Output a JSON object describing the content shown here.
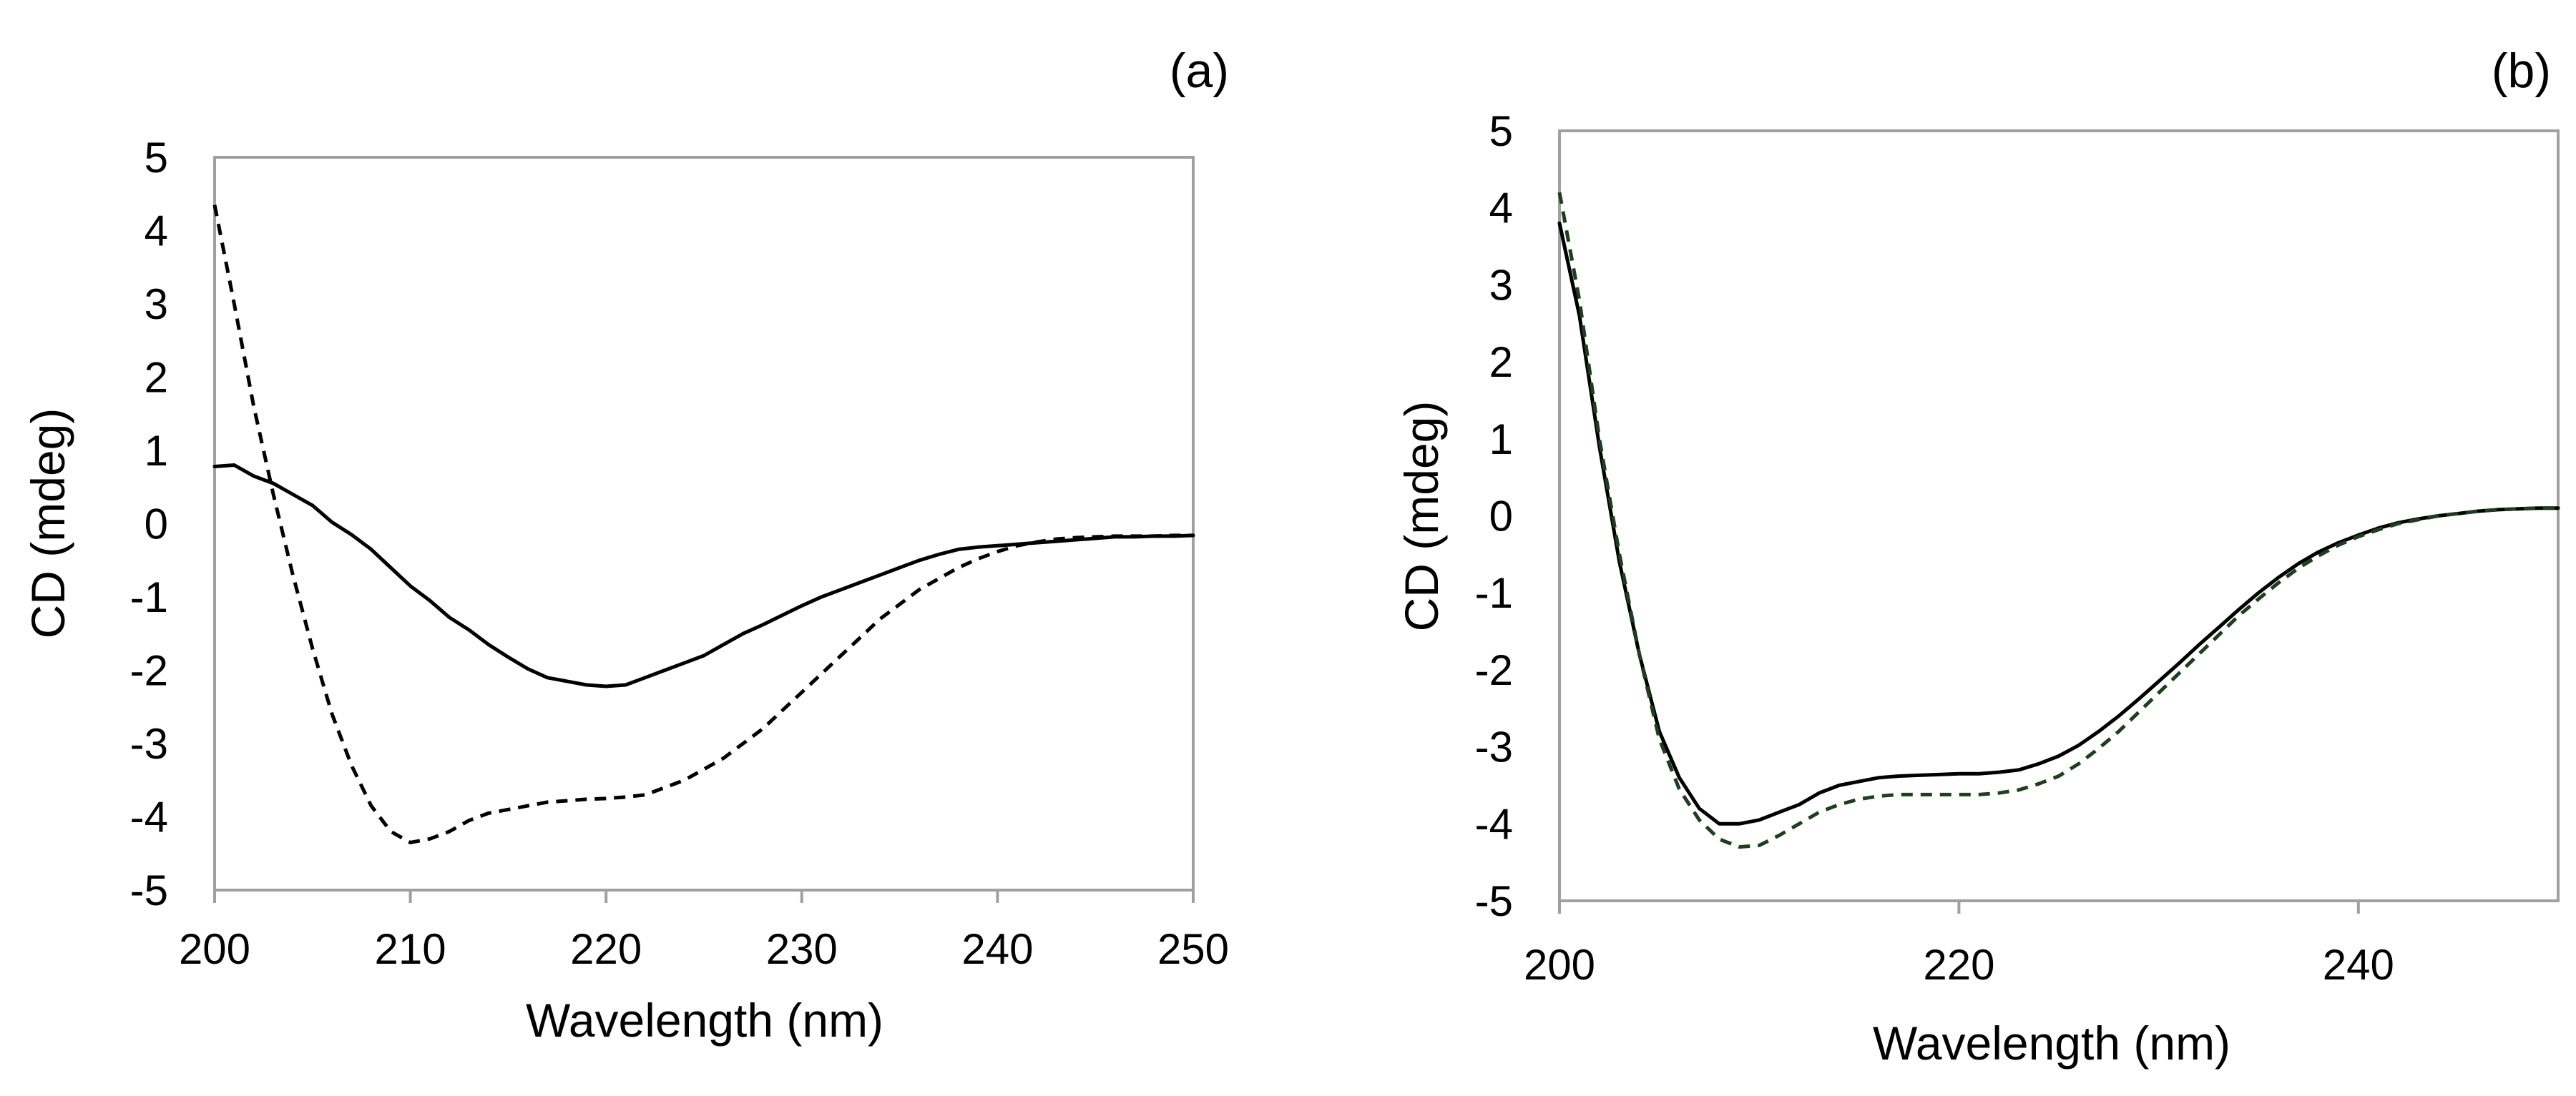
{
  "chart_data": [
    {
      "type": "line",
      "panel_label": "(a)",
      "xlabel": "Wavelength (nm)",
      "ylabel": "CD (mdeg)",
      "xlim": [
        200,
        250
      ],
      "ylim": [
        -5,
        5
      ],
      "x_ticks": [
        200,
        210,
        220,
        230,
        240,
        250
      ],
      "x_tick_labels": [
        "200",
        "210",
        "220",
        "230",
        "240",
        "250"
      ],
      "y_ticks": [
        5,
        4,
        3,
        2,
        1,
        0,
        -1,
        -2,
        -3,
        -4,
        -5
      ],
      "y_tick_labels": [
        "5",
        "4",
        "3",
        "2",
        "1",
        "0",
        "-1",
        "-2",
        "-3",
        "-4",
        "-5"
      ],
      "grid": false,
      "frame_color": "#a0a0a0",
      "series": [
        {
          "name": "solid",
          "style": "solid",
          "color": "#000000",
          "x": [
            200,
            201,
            202,
            203,
            204,
            205,
            206,
            207,
            208,
            209,
            210,
            211,
            212,
            213,
            214,
            215,
            216,
            217,
            218,
            219,
            220,
            221,
            222,
            223,
            224,
            225,
            226,
            227,
            228,
            229,
            230,
            231,
            232,
            233,
            234,
            235,
            236,
            237,
            238,
            239,
            240,
            241,
            242,
            243,
            244,
            245,
            246,
            247,
            248,
            249,
            250
          ],
          "values": [
            0.78,
            0.8,
            0.65,
            0.55,
            0.4,
            0.25,
            0.02,
            -0.15,
            -0.35,
            -0.6,
            -0.85,
            -1.05,
            -1.28,
            -1.45,
            -1.65,
            -1.82,
            -1.98,
            -2.1,
            -2.15,
            -2.2,
            -2.22,
            -2.2,
            -2.1,
            -2.0,
            -1.9,
            -1.8,
            -1.65,
            -1.5,
            -1.38,
            -1.25,
            -1.12,
            -1.0,
            -0.9,
            -0.8,
            -0.7,
            -0.6,
            -0.5,
            -0.42,
            -0.35,
            -0.32,
            -0.3,
            -0.28,
            -0.26,
            -0.24,
            -0.22,
            -0.2,
            -0.18,
            -0.18,
            -0.17,
            -0.17,
            -0.16
          ]
        },
        {
          "name": "dashed",
          "style": "dashed",
          "color": "#000000",
          "x": [
            200,
            201,
            202,
            203,
            204,
            205,
            206,
            207,
            208,
            209,
            210,
            211,
            212,
            213,
            214,
            215,
            216,
            217,
            218,
            219,
            220,
            221,
            222,
            223,
            224,
            225,
            226,
            227,
            228,
            229,
            230,
            231,
            232,
            233,
            234,
            235,
            236,
            237,
            238,
            239,
            240,
            241,
            242,
            243,
            244,
            245,
            246,
            247,
            248,
            249,
            250
          ],
          "values": [
            4.35,
            3.0,
            1.6,
            0.4,
            -0.7,
            -1.7,
            -2.6,
            -3.3,
            -3.85,
            -4.2,
            -4.35,
            -4.3,
            -4.2,
            -4.05,
            -3.95,
            -3.9,
            -3.85,
            -3.8,
            -3.78,
            -3.76,
            -3.75,
            -3.73,
            -3.7,
            -3.6,
            -3.5,
            -3.35,
            -3.2,
            -3.0,
            -2.8,
            -2.55,
            -2.3,
            -2.05,
            -1.8,
            -1.55,
            -1.3,
            -1.1,
            -0.9,
            -0.75,
            -0.6,
            -0.48,
            -0.38,
            -0.3,
            -0.25,
            -0.21,
            -0.19,
            -0.18,
            -0.17,
            -0.17,
            -0.17,
            -0.16,
            -0.16
          ]
        }
      ]
    },
    {
      "type": "line",
      "panel_label": "(b)",
      "xlabel": "Wavelength (nm)",
      "ylabel": "CD (mdeg)",
      "xlim": [
        200,
        250
      ],
      "ylim": [
        -5,
        5
      ],
      "x_ticks": [
        200,
        220,
        240
      ],
      "x_tick_labels": [
        "200",
        "220",
        "240"
      ],
      "y_ticks": [
        5,
        4,
        3,
        2,
        1,
        0,
        -1,
        -2,
        -3,
        -4,
        -5
      ],
      "y_tick_labels": [
        "5",
        "4",
        "3",
        "2",
        "1",
        "0",
        "-1",
        "-2",
        "-3",
        "-4",
        "-5"
      ],
      "grid": false,
      "frame_color": "#a0a0a0",
      "series": [
        {
          "name": "solid",
          "style": "solid",
          "color": "#000000",
          "x": [
            200,
            201,
            202,
            203,
            204,
            205,
            206,
            207,
            208,
            209,
            210,
            211,
            212,
            213,
            214,
            215,
            216,
            217,
            218,
            219,
            220,
            221,
            222,
            223,
            224,
            225,
            226,
            227,
            228,
            229,
            230,
            231,
            232,
            233,
            234,
            235,
            236,
            237,
            238,
            239,
            240,
            241,
            242,
            243,
            244,
            245,
            246,
            247,
            248,
            249,
            250
          ],
          "values": [
            3.8,
            2.6,
            0.9,
            -0.6,
            -1.8,
            -2.8,
            -3.4,
            -3.8,
            -4.0,
            -4.0,
            -3.95,
            -3.85,
            -3.75,
            -3.6,
            -3.5,
            -3.45,
            -3.4,
            -3.38,
            -3.37,
            -3.36,
            -3.35,
            -3.35,
            -3.33,
            -3.3,
            -3.22,
            -3.12,
            -2.98,
            -2.8,
            -2.6,
            -2.38,
            -2.15,
            -1.92,
            -1.68,
            -1.45,
            -1.22,
            -1.0,
            -0.8,
            -0.62,
            -0.47,
            -0.35,
            -0.25,
            -0.16,
            -0.09,
            -0.04,
            0.0,
            0.03,
            0.06,
            0.08,
            0.09,
            0.1,
            0.1
          ]
        },
        {
          "name": "dashed",
          "style": "dashed",
          "color": "#1f3d1f",
          "x": [
            200,
            201,
            202,
            203,
            204,
            205,
            206,
            207,
            208,
            209,
            210,
            211,
            212,
            213,
            214,
            215,
            216,
            217,
            218,
            219,
            220,
            221,
            222,
            223,
            224,
            225,
            226,
            227,
            228,
            229,
            230,
            231,
            232,
            233,
            234,
            235,
            236,
            237,
            238,
            239,
            240,
            241,
            242,
            243,
            244,
            245,
            246,
            247,
            248,
            249,
            250
          ],
          "values": [
            4.2,
            2.8,
            1.0,
            -0.5,
            -1.8,
            -2.9,
            -3.55,
            -3.95,
            -4.2,
            -4.3,
            -4.28,
            -4.15,
            -4.0,
            -3.85,
            -3.75,
            -3.68,
            -3.64,
            -3.62,
            -3.62,
            -3.62,
            -3.62,
            -3.62,
            -3.6,
            -3.56,
            -3.48,
            -3.38,
            -3.22,
            -3.02,
            -2.8,
            -2.55,
            -2.3,
            -2.05,
            -1.8,
            -1.55,
            -1.3,
            -1.08,
            -0.87,
            -0.68,
            -0.52,
            -0.38,
            -0.27,
            -0.18,
            -0.1,
            -0.05,
            0.0,
            0.03,
            0.06,
            0.08,
            0.09,
            0.1,
            0.1
          ]
        }
      ]
    }
  ]
}
